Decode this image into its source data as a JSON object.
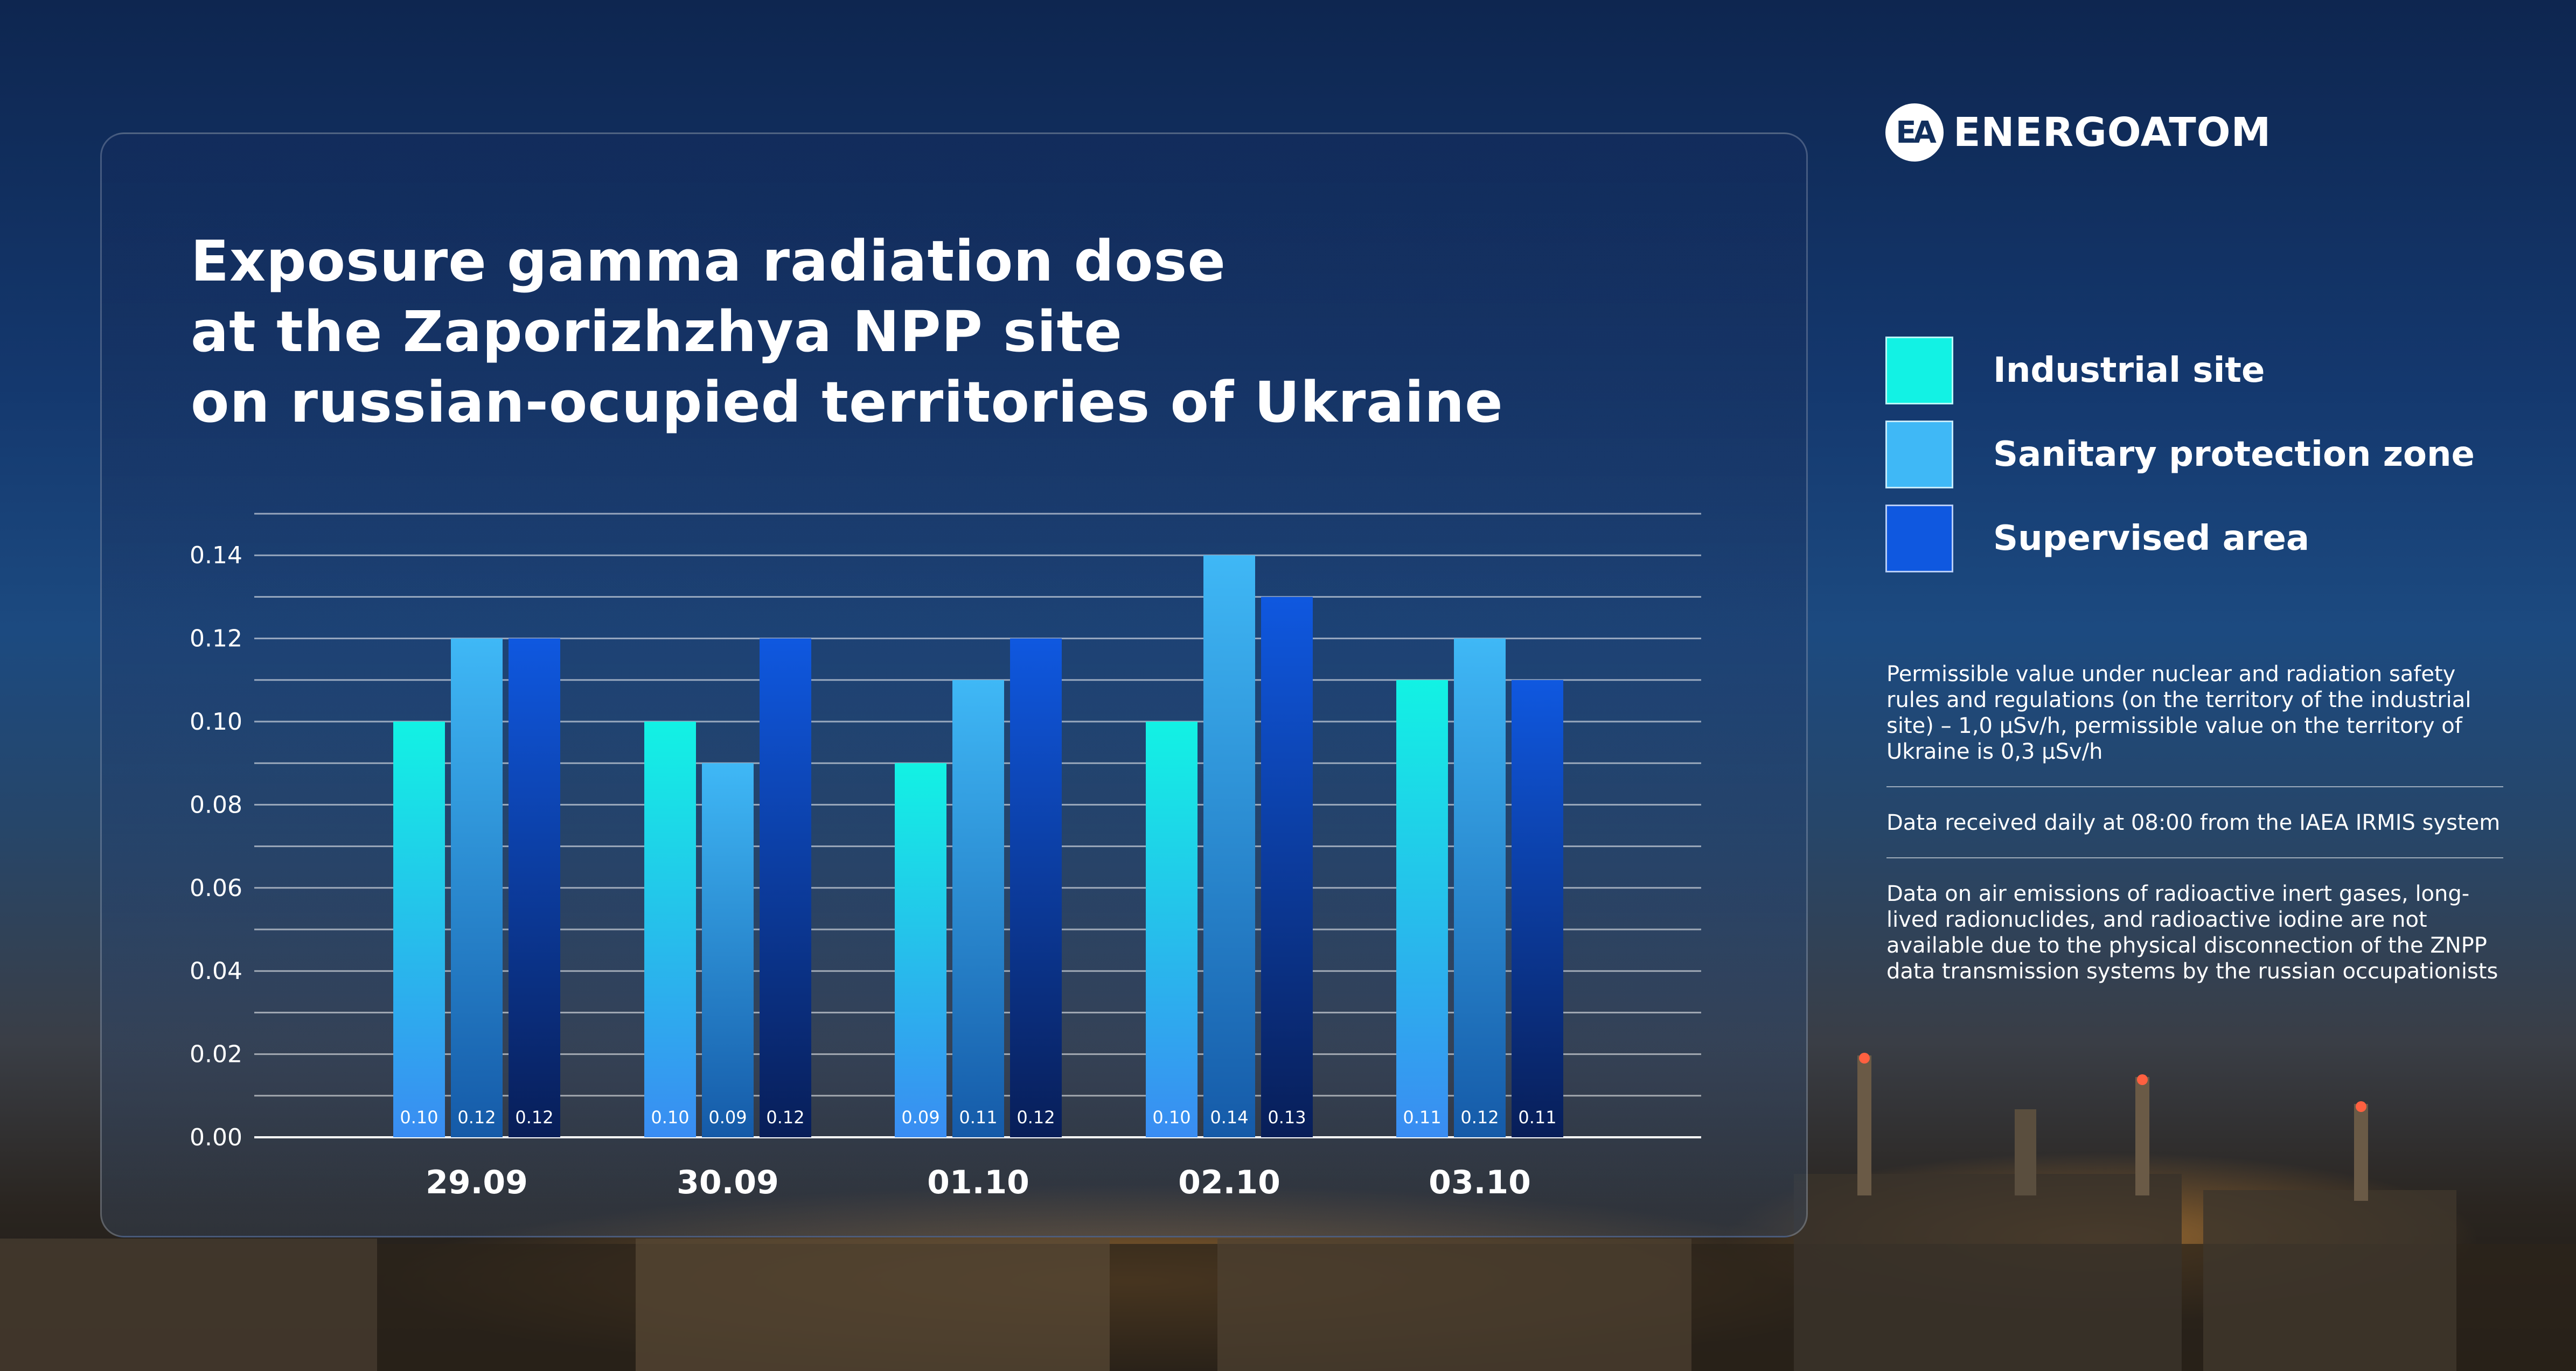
{
  "brand": {
    "logo_text": "ENERGOATOM",
    "logo_mark": "EA"
  },
  "chart_data": {
    "type": "bar",
    "title_lines": [
      "Exposure gamma radiation dose",
      "at the Zaporizhzhya NPP site",
      "on russian-ocupied territories of Ukraine"
    ],
    "categories": [
      "29.09",
      "30.09",
      "01.10",
      "02.10",
      "03.10"
    ],
    "series": [
      {
        "name": "Industrial site",
        "color": "#12f2e4",
        "values": [
          0.1,
          0.1,
          0.09,
          0.1,
          0.11
        ],
        "labels": [
          "0.10",
          "0.10",
          "0.09",
          "0.10",
          "0.11"
        ]
      },
      {
        "name": "Sanitary protection zone",
        "color": "#3fb8f6",
        "values": [
          0.12,
          0.09,
          0.11,
          0.14,
          0.12
        ],
        "labels": [
          "0.12",
          "0.09",
          "0.11",
          "0.14",
          "0.12"
        ]
      },
      {
        "name": "Supervised area",
        "color": "#0f58e0",
        "values": [
          0.12,
          0.12,
          0.12,
          0.13,
          0.11
        ],
        "labels": [
          "0.12",
          "0.12",
          "0.12",
          "0.13",
          "0.11"
        ]
      }
    ],
    "yticks": [
      "0.00",
      "0.02",
      "0.04",
      "0.06",
      "0.08",
      "0.10",
      "0.12",
      "0.14"
    ],
    "ylim": [
      0,
      0.15
    ],
    "grid": true,
    "legend_position": "right"
  },
  "notes": [
    "Permissible value under nuclear and radiation safety rules and regulations (on the territory of the industrial site) – 1,0 µSv/h, permissible value on the territory of Ukraine is 0,3 µSv/h",
    "Data received daily at 08:00 from the IAEA IRMIS system",
    "Data on air emissions of radioactive inert gases, long-lived radionuclides, and radioactive iodine are not available due to the physical disconnection of the ZNPP data transmission systems by the russian occupationists"
  ]
}
